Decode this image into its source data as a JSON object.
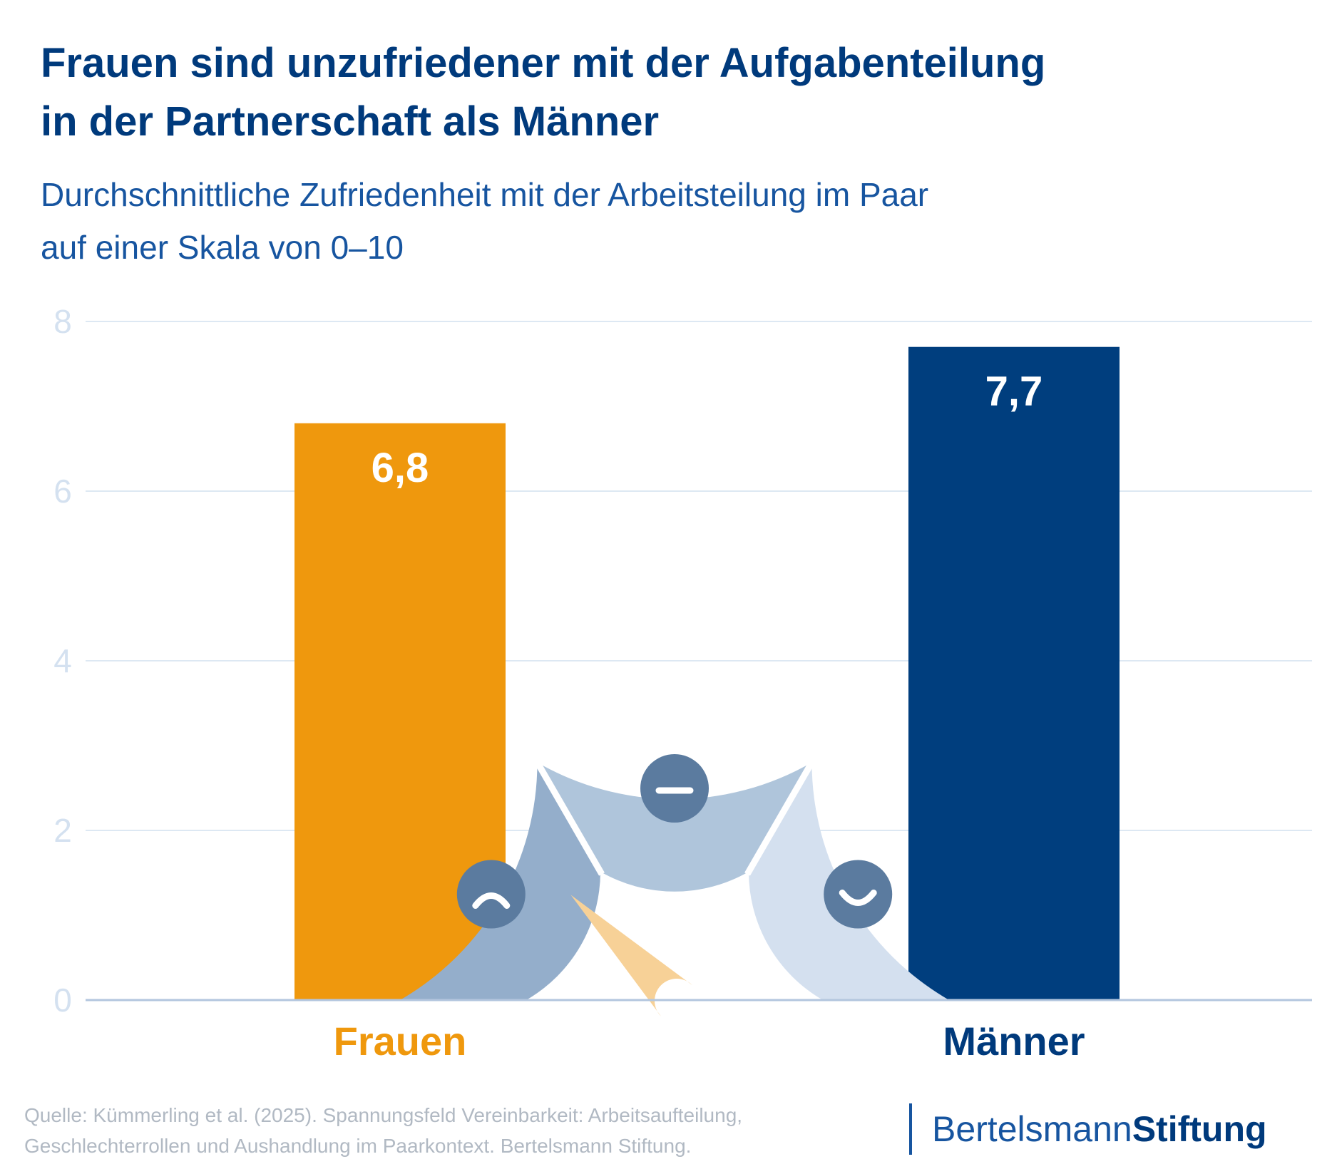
{
  "header": {
    "title_line1": "Frauen sind unzufriedener mit der Aufgabenteilung",
    "title_line2": "in der Partnerschaft als Männer",
    "subtitle_line1": "Durchschnittliche Zufriedenheit mit der Arbeitsteilung im Paar",
    "subtitle_line2": "auf einer Skala von 0–10"
  },
  "chart_data": {
    "type": "bar",
    "title": "Frauen sind unzufriedener mit der Aufgabenteilung in der Partnerschaft als Männer",
    "subtitle": "Durchschnittliche Zufriedenheit mit der Arbeitsteilung im Paar auf einer Skala von 0–10",
    "categories": [
      "Frauen",
      "Männer"
    ],
    "values": [
      6.8,
      7.7
    ],
    "value_labels": [
      "6,8",
      "7,7"
    ],
    "colors": [
      "#ef980d",
      "#003e7e"
    ],
    "ylim": [
      0,
      8
    ],
    "yticks": [
      0,
      2,
      4,
      6,
      8
    ],
    "ytick_labels": [
      "0",
      "2",
      "4",
      "6",
      "8"
    ],
    "grid": true,
    "xlabel": "",
    "ylabel": ""
  },
  "gauge": {
    "segments": [
      "unzufrieden",
      "neutral",
      "zufrieden"
    ],
    "segment_colors": [
      "#94aecb",
      "#afc5db",
      "#d4e0ef"
    ],
    "face_color": "#5b7b9f",
    "needle_color": "#f7d197",
    "needle_value": 0.25
  },
  "colors": {
    "title": "#003a7c",
    "subtitle": "#1755a0",
    "axis": "#b3c6de",
    "grid": "#dde8f3",
    "tick_label": "#d4e1f0",
    "source": "#b1b9c3"
  },
  "footer": {
    "source_line1": "Quelle: Kümmerling et al. (2025). Spannungsfeld Vereinbarkeit: Arbeitsaufteilung,",
    "source_line2": "Geschlechterrollen und Aushandlung im Paarkontext. Bertelsmann Stiftung.",
    "logo_part1": "Bertelsmann",
    "logo_part2": "Stiftung"
  }
}
